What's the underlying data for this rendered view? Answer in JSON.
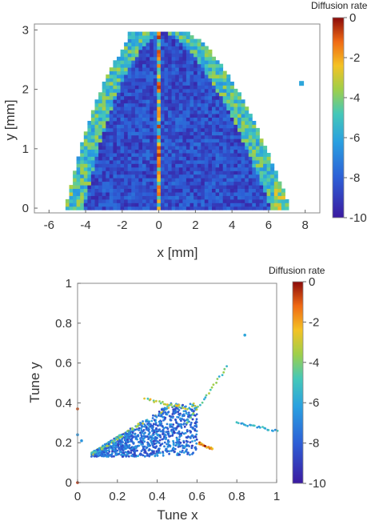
{
  "chart_data": [
    {
      "type": "heatmap",
      "xlabel": "x [mm]",
      "ylabel": "y [mm]",
      "xlim": [
        -6.8,
        8.8
      ],
      "ylim": [
        -0.08,
        3.1
      ],
      "xticks": [
        -6,
        -4,
        -2,
        0,
        2,
        4,
        6,
        8
      ],
      "xtick_labels": [
        "-6",
        "-4",
        "-2",
        "0",
        "2",
        "4",
        "6",
        "8"
      ],
      "yticks": [
        0,
        1,
        2,
        3
      ],
      "ytick_labels": [
        "0",
        "1",
        "2",
        "3"
      ],
      "grid": false,
      "colorbar": {
        "title": "Diffusion rate",
        "min": -10,
        "max": 0,
        "ticks": [
          0,
          -2,
          -4,
          -6,
          -8,
          -10
        ],
        "tick_labels": [
          "0",
          "-2",
          "-4",
          "-6",
          "-8",
          "-10"
        ]
      },
      "dominant_value": -8.5,
      "regions": [
        {
          "description": "central parabolic stable region",
          "x_range": [
            -5.8,
            8.0
          ],
          "y_range": [
            0.0,
            3.0
          ],
          "value": -8.5
        },
        {
          "description": "vertical red streak near x=0",
          "x": 0.0,
          "y_range": [
            0.0,
            3.0
          ],
          "value": -1.5
        },
        {
          "description": "left outer edge, higher diffusion",
          "x_range": [
            -6.0,
            -4.5
          ],
          "y_range": [
            0.0,
            1.8
          ],
          "value": -5.0
        },
        {
          "description": "upper left detached arm",
          "x_range": [
            -4.8,
            -1.2
          ],
          "y_range": [
            1.8,
            3.0
          ],
          "value": -5.5
        },
        {
          "description": "right outer edge near x=7",
          "x_range": [
            6.5,
            7.8
          ],
          "y_range": [
            0.0,
            0.8
          ],
          "value": -4.0
        }
      ],
      "isolated_points": [
        {
          "x": 7.8,
          "y": 2.1,
          "value": -6.0
        }
      ]
    },
    {
      "type": "scatter",
      "xlabel": "Tune x",
      "ylabel": "Tune y",
      "xlim": [
        0,
        1
      ],
      "ylim": [
        0,
        1
      ],
      "xticks": [
        0,
        0.2,
        0.4,
        0.6,
        0.8,
        1
      ],
      "xtick_labels": [
        "0",
        "0.2",
        "0.4",
        "0.6",
        "0.8",
        "1"
      ],
      "yticks": [
        0,
        0.2,
        0.4,
        0.6,
        0.8,
        1
      ],
      "ytick_labels": [
        "0",
        "0.2",
        "0.4",
        "0.6",
        "0.8",
        "1"
      ],
      "grid": false,
      "colorbar": {
        "title": "Diffusion rate",
        "min": -10,
        "max": 0,
        "ticks": [
          0,
          -2,
          -4,
          -6,
          -8,
          -10
        ],
        "tick_labels": [
          "0",
          "-2",
          "-4",
          "-6",
          "-8",
          "-10"
        ]
      },
      "clusters": [
        {
          "description": "main tune footprint",
          "x_range": [
            0.07,
            0.6
          ],
          "y_range": [
            0.13,
            0.4
          ],
          "value": -7.5
        },
        {
          "description": "diagonal arm",
          "x": [
            0.55,
            0.75
          ],
          "y": [
            0.3,
            0.58
          ],
          "value": -4.5
        },
        {
          "description": "horizontal line right",
          "x": [
            0.8,
            1.0
          ],
          "y": [
            0.3,
            0.26
          ],
          "value": -6.0
        },
        {
          "description": "line near (0.4,0.38)",
          "x": [
            0.34,
            0.55
          ],
          "y": [
            0.42,
            0.37
          ],
          "value": -3.5
        },
        {
          "description": "red line near (0.65,0.18)",
          "x": [
            0.61,
            0.68
          ],
          "y": [
            0.2,
            0.165
          ],
          "value": -1.5
        }
      ],
      "points": [
        {
          "x": 0.84,
          "y": 0.74,
          "value": -6.0
        },
        {
          "x": 0.0,
          "y": 0.0,
          "value": -0.5
        },
        {
          "x": 0.0,
          "y": 0.37,
          "value": -0.8
        },
        {
          "x": 0.0,
          "y": 0.24,
          "value": -6.5
        },
        {
          "x": 0.02,
          "y": 0.21,
          "value": -6.5
        }
      ]
    }
  ]
}
